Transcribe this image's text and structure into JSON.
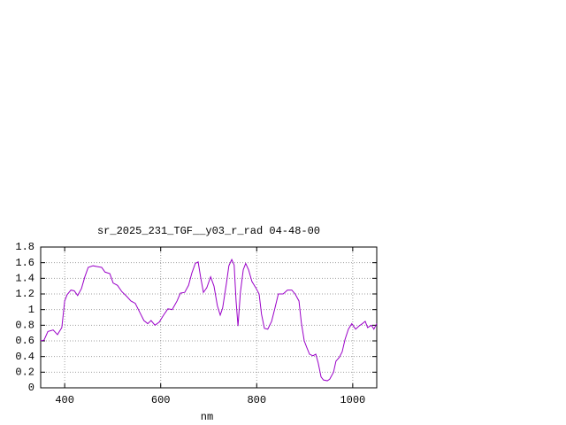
{
  "chart_data": {
    "type": "line",
    "title": "sr_2025_231_TGF__y03_r_rad 04-48-00",
    "x_label": "nm",
    "x": [
      350,
      357,
      365,
      376,
      385,
      394,
      400,
      405,
      413,
      420,
      427,
      435,
      442,
      449,
      459,
      468,
      477,
      484,
      494,
      501,
      510,
      519,
      529,
      538,
      547,
      556,
      565,
      573,
      580,
      588,
      597,
      606,
      615,
      624,
      634,
      641,
      650,
      658,
      665,
      672,
      678,
      683,
      689,
      696,
      704,
      711,
      718,
      724,
      729,
      737,
      742,
      748,
      753,
      757,
      761,
      766,
      772,
      777,
      783,
      790,
      799,
      805,
      810,
      816,
      823,
      831,
      838,
      845,
      855,
      864,
      873,
      880,
      888,
      893,
      899,
      904,
      910,
      917,
      923,
      928,
      934,
      939,
      947,
      952,
      960,
      965,
      972,
      978,
      984,
      991,
      998,
      1006,
      1013,
      1020,
      1026,
      1031,
      1039,
      1044,
      1050
    ],
    "series": [
      {
        "color": "#9a00c8",
        "values": [
          0.6,
          0.61,
          0.72,
          0.74,
          0.68,
          0.77,
          1.11,
          1.19,
          1.25,
          1.24,
          1.18,
          1.27,
          1.42,
          1.54,
          1.56,
          1.55,
          1.54,
          1.48,
          1.46,
          1.34,
          1.31,
          1.23,
          1.17,
          1.11,
          1.08,
          0.97,
          0.86,
          0.82,
          0.86,
          0.8,
          0.84,
          0.93,
          1.01,
          1.0,
          1.11,
          1.21,
          1.22,
          1.31,
          1.47,
          1.59,
          1.61,
          1.42,
          1.22,
          1.28,
          1.42,
          1.3,
          1.05,
          0.93,
          1.02,
          1.34,
          1.56,
          1.64,
          1.57,
          1.11,
          0.79,
          1.22,
          1.51,
          1.59,
          1.51,
          1.36,
          1.27,
          1.2,
          0.94,
          0.76,
          0.75,
          0.85,
          1.02,
          1.2,
          1.2,
          1.25,
          1.25,
          1.2,
          1.11,
          0.83,
          0.6,
          0.52,
          0.43,
          0.41,
          0.43,
          0.32,
          0.14,
          0.1,
          0.09,
          0.11,
          0.2,
          0.34,
          0.39,
          0.46,
          0.62,
          0.75,
          0.82,
          0.75,
          0.79,
          0.82,
          0.85,
          0.77,
          0.8,
          0.75,
          0.82
        ]
      }
    ],
    "xlim": [
      350,
      1050
    ],
    "xticks": [
      400,
      600,
      800,
      1000
    ],
    "ylim": [
      0,
      1.8
    ],
    "yticks": [
      0,
      0.2,
      0.4,
      0.6,
      0.8,
      1,
      1.2,
      1.4,
      1.6,
      1.8
    ],
    "grid": true
  }
}
